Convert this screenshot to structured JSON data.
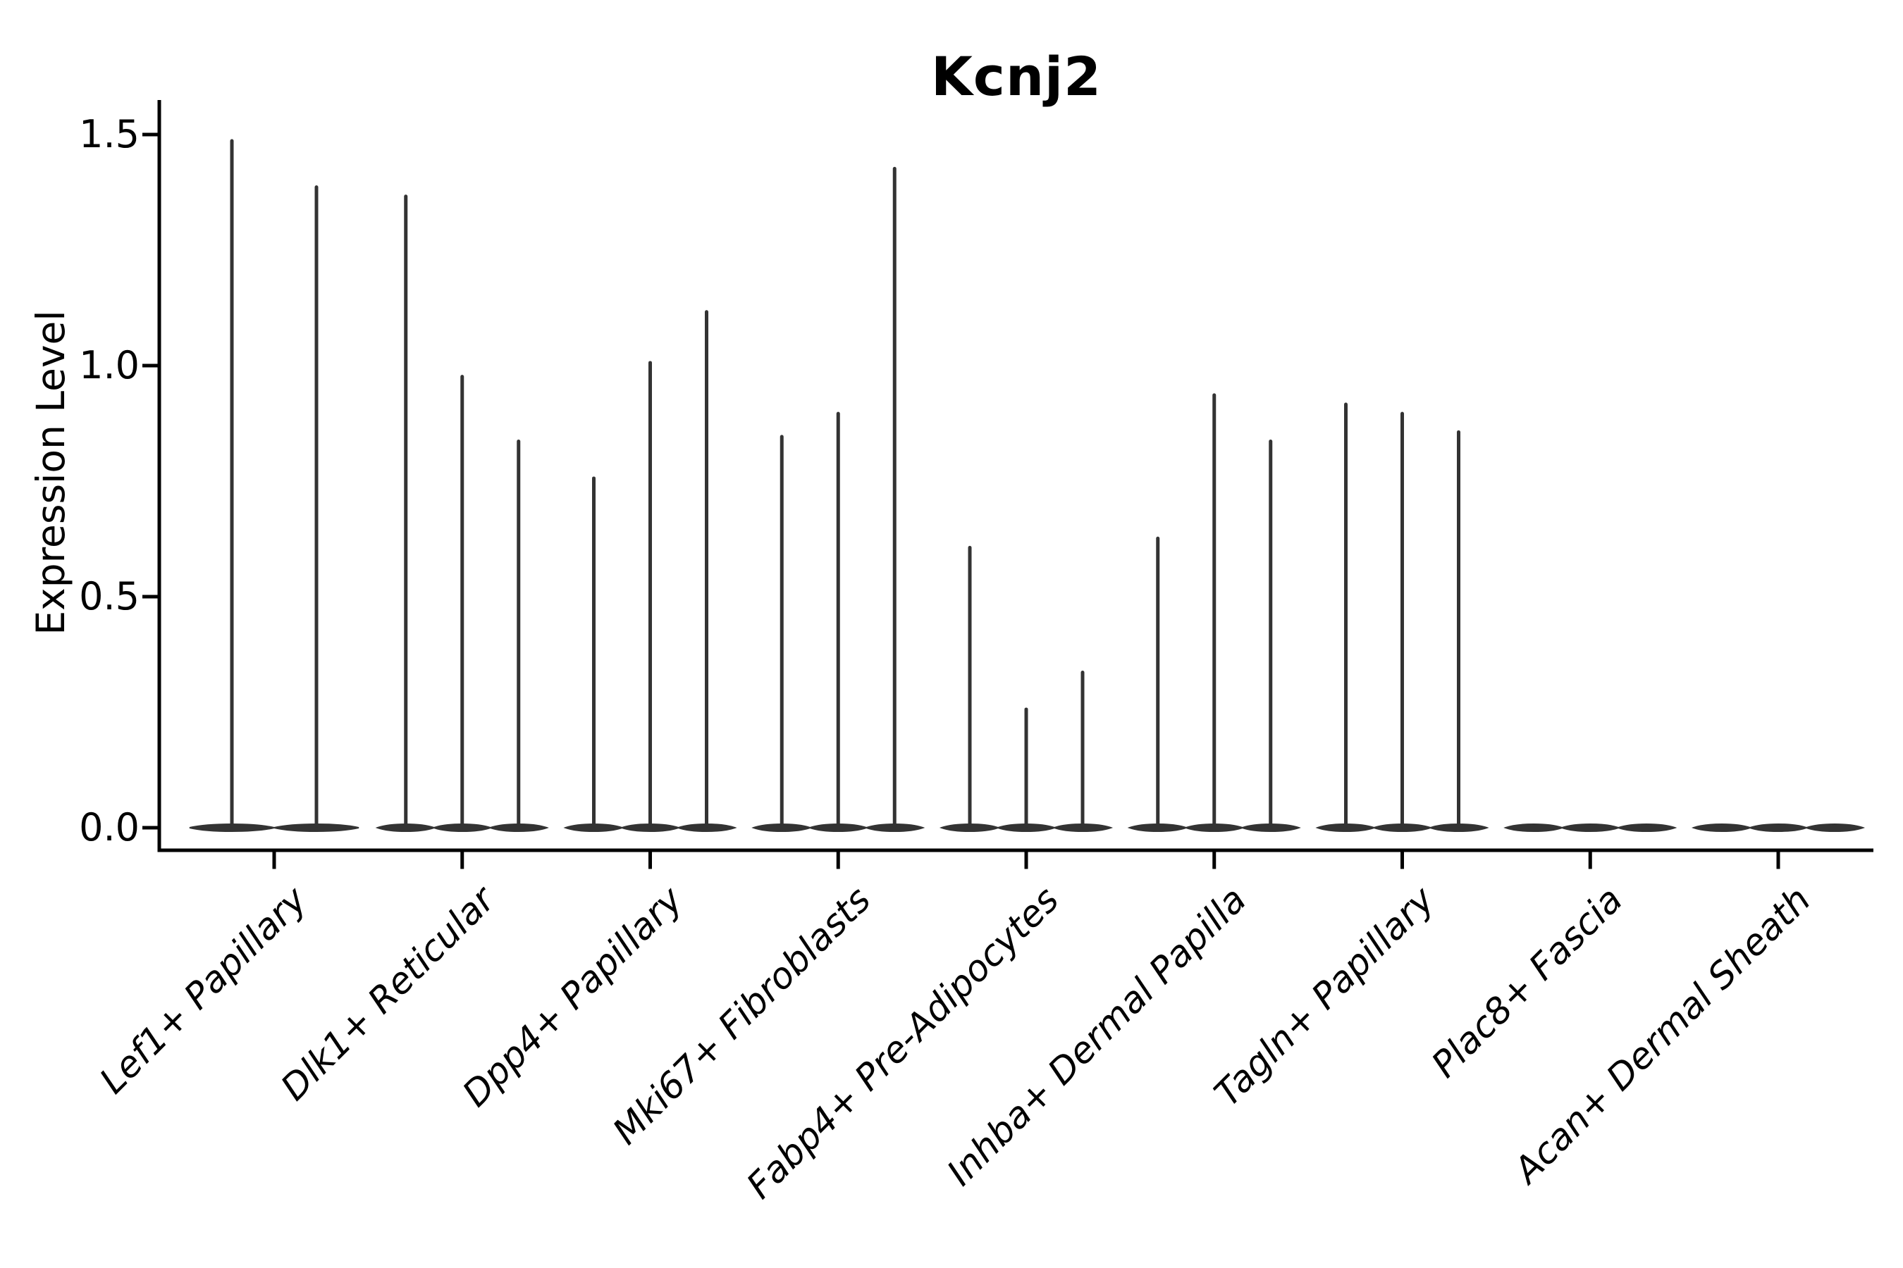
{
  "chart_data": {
    "type": "violin",
    "title": "Kcnj2",
    "xlabel": "",
    "ylabel": "Expression Level",
    "categories": [
      "Lef1+ Papillary",
      "Dlk1+ Reticular",
      "Dpp4+ Papillary",
      "Mki67+ Fibroblasts",
      "Fabp4+ Pre-Adipocytes",
      "Inhba+ Dermal Papilla",
      "Tagln+ Papillary",
      "Plac8+ Fascia",
      "Acan+ Dermal Sheath"
    ],
    "series": [
      {
        "category": "Lef1+ Papillary",
        "violin_max_values": [
          1.49,
          1.39
        ]
      },
      {
        "category": "Dlk1+ Reticular",
        "violin_max_values": [
          1.37,
          0.98,
          0.84
        ]
      },
      {
        "category": "Dpp4+ Papillary",
        "violin_max_values": [
          0.76,
          1.01,
          1.12
        ]
      },
      {
        "category": "Mki67+ Fibroblasts",
        "violin_max_values": [
          0.85,
          0.9,
          1.43
        ]
      },
      {
        "category": "Fabp4+ Pre-Adipocytes",
        "violin_max_values": [
          0.61,
          0.26,
          0.34
        ]
      },
      {
        "category": "Inhba+ Dermal Papilla",
        "violin_max_values": [
          0.63,
          0.94,
          0.84
        ]
      },
      {
        "category": "Tagln+ Papillary",
        "violin_max_values": [
          0.92,
          0.9,
          0.86
        ]
      },
      {
        "category": "Plac8+ Fascia",
        "violin_max_values": [
          0,
          0,
          0
        ]
      },
      {
        "category": "Acan+ Dermal Sheath",
        "violin_max_values": [
          0,
          0,
          0
        ]
      }
    ],
    "y_ticks": [
      0.0,
      0.5,
      1.0,
      1.5
    ],
    "y_tick_labels": [
      "0.0",
      "0.5",
      "1.0",
      "1.5"
    ],
    "ylim": [
      -0.05,
      1.58
    ],
    "grid": false,
    "legend_position": "none",
    "violin_color": "#333333",
    "axis_color": "#000000",
    "background_color": "#ffffff",
    "shape_note": "Each violin is collapsed into a flat dark band at expression 0 with a hair-thin spike rising to its maximum expression value; Plac8+ Fascia and Acan+ Dermal Sheath are flat bands only."
  }
}
